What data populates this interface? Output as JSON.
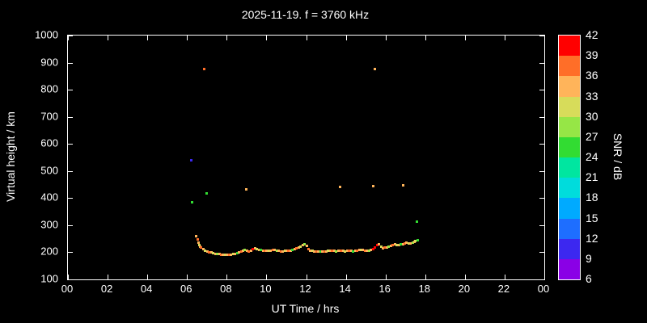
{
  "chart_data": {
    "type": "scatter",
    "title": "2025-11-19. f = 3760 kHz",
    "xlabel": "UT Time / hrs",
    "ylabel": "Virtual height / km",
    "xlim": [
      0,
      24
    ],
    "ylim": [
      100,
      1000
    ],
    "grid": false,
    "background_color": "#000000",
    "frame_color": "#ffffff",
    "x_tick_values": [
      0,
      2,
      4,
      6,
      8,
      10,
      12,
      14,
      16,
      18,
      20,
      22,
      24
    ],
    "x_tick_labels": [
      "00",
      "02",
      "04",
      "06",
      "08",
      "10",
      "12",
      "14",
      "16",
      "18",
      "20",
      "22",
      "00"
    ],
    "y_tick_values": [
      100,
      200,
      300,
      400,
      500,
      600,
      700,
      800,
      900,
      1000
    ],
    "colorbar": {
      "label": "SNR / dB",
      "min": 6,
      "max": 42,
      "tick_values": [
        6,
        9,
        12,
        15,
        18,
        21,
        24,
        27,
        30,
        33,
        36,
        39,
        42
      ],
      "segment_colors": [
        "#8a00e6",
        "#3c28f0",
        "#1e6eff",
        "#00aaff",
        "#00dcdc",
        "#00e6a0",
        "#32dc32",
        "#96e646",
        "#d7dc5a",
        "#ffb45a",
        "#ff6e28",
        "#ff0000"
      ]
    },
    "points_format": [
      "ut_hours",
      "virtual_height_km",
      "snr_db"
    ],
    "points": [
      [
        6.18,
        540,
        11
      ],
      [
        6.22,
        386,
        24
      ],
      [
        6.85,
        878,
        38
      ],
      [
        6.95,
        420,
        25
      ],
      [
        8.95,
        434,
        34
      ],
      [
        13.7,
        443,
        34
      ],
      [
        15.45,
        878,
        34
      ],
      [
        15.35,
        446,
        34
      ],
      [
        16.85,
        450,
        34
      ],
      [
        17.55,
        316,
        25
      ],
      [
        6.45,
        262,
        33
      ],
      [
        6.5,
        248,
        36
      ],
      [
        6.55,
        238,
        33
      ],
      [
        6.6,
        228,
        30
      ],
      [
        6.65,
        222,
        33
      ],
      [
        6.7,
        218,
        36
      ],
      [
        6.8,
        212,
        33
      ],
      [
        6.9,
        208,
        30
      ],
      [
        7.0,
        205,
        33
      ],
      [
        7.1,
        202,
        36
      ],
      [
        7.2,
        200,
        33
      ],
      [
        7.3,
        198,
        30
      ],
      [
        7.4,
        196,
        33
      ],
      [
        7.5,
        195,
        27
      ],
      [
        7.6,
        194,
        33
      ],
      [
        7.7,
        193,
        36
      ],
      [
        7.8,
        192,
        33
      ],
      [
        7.9,
        192,
        30
      ],
      [
        8.0,
        191,
        33
      ],
      [
        8.1,
        192,
        36
      ],
      [
        8.2,
        193,
        33
      ],
      [
        8.3,
        195,
        30
      ],
      [
        8.4,
        196,
        33
      ],
      [
        8.5,
        198,
        24
      ],
      [
        8.6,
        200,
        33
      ],
      [
        8.7,
        203,
        36
      ],
      [
        8.8,
        207,
        33
      ],
      [
        8.9,
        210,
        27
      ],
      [
        9.0,
        206,
        33
      ],
      [
        9.1,
        204,
        36
      ],
      [
        9.2,
        207,
        33
      ],
      [
        9.3,
        212,
        39
      ],
      [
        9.4,
        216,
        33
      ],
      [
        9.5,
        213,
        30
      ],
      [
        9.6,
        210,
        33
      ],
      [
        9.7,
        209,
        24
      ],
      [
        9.8,
        208,
        33
      ],
      [
        9.9,
        207,
        36
      ],
      [
        10.0,
        207,
        33
      ],
      [
        10.1,
        208,
        30
      ],
      [
        10.2,
        208,
        33
      ],
      [
        10.3,
        210,
        36
      ],
      [
        10.4,
        209,
        33
      ],
      [
        10.5,
        207,
        27
      ],
      [
        10.6,
        206,
        33
      ],
      [
        10.7,
        205,
        36
      ],
      [
        10.8,
        205,
        33
      ],
      [
        10.9,
        206,
        30
      ],
      [
        11.0,
        206,
        33
      ],
      [
        11.1,
        207,
        36
      ],
      [
        11.2,
        208,
        33
      ],
      [
        11.3,
        210,
        24
      ],
      [
        11.4,
        212,
        33
      ],
      [
        11.5,
        215,
        36
      ],
      [
        11.6,
        218,
        33
      ],
      [
        11.7,
        222,
        30
      ],
      [
        11.8,
        228,
        33
      ],
      [
        11.9,
        232,
        27
      ],
      [
        12.0,
        224,
        33
      ],
      [
        12.1,
        214,
        36
      ],
      [
        12.2,
        208,
        33
      ],
      [
        12.3,
        206,
        30
      ],
      [
        12.4,
        205,
        33
      ],
      [
        12.5,
        205,
        36
      ],
      [
        12.6,
        204,
        33
      ],
      [
        12.7,
        203,
        24
      ],
      [
        12.8,
        204,
        33
      ],
      [
        12.9,
        205,
        36
      ],
      [
        13.0,
        205,
        33
      ],
      [
        13.1,
        206,
        30
      ],
      [
        13.2,
        206,
        33
      ],
      [
        13.3,
        207,
        36
      ],
      [
        13.4,
        206,
        33
      ],
      [
        13.5,
        205,
        27
      ],
      [
        13.6,
        206,
        33
      ],
      [
        13.75,
        207,
        36
      ],
      [
        13.85,
        206,
        33
      ],
      [
        13.95,
        205,
        30
      ],
      [
        14.05,
        206,
        33
      ],
      [
        14.15,
        207,
        36
      ],
      [
        14.25,
        206,
        33
      ],
      [
        14.35,
        205,
        24
      ],
      [
        14.45,
        206,
        33
      ],
      [
        14.55,
        207,
        36
      ],
      [
        14.65,
        209,
        33
      ],
      [
        14.75,
        211,
        30
      ],
      [
        14.85,
        209,
        33
      ],
      [
        14.95,
        208,
        36
      ],
      [
        15.05,
        207,
        33
      ],
      [
        15.15,
        208,
        27
      ],
      [
        15.25,
        210,
        33
      ],
      [
        15.35,
        213,
        39
      ],
      [
        15.45,
        218,
        42
      ],
      [
        15.55,
        228,
        39
      ],
      [
        15.65,
        232,
        33
      ],
      [
        15.75,
        222,
        30
      ],
      [
        15.85,
        215,
        33
      ],
      [
        15.95,
        218,
        36
      ],
      [
        16.05,
        220,
        33
      ],
      [
        16.15,
        223,
        27
      ],
      [
        16.25,
        226,
        33
      ],
      [
        16.35,
        228,
        36
      ],
      [
        16.45,
        230,
        33
      ],
      [
        16.55,
        229,
        30
      ],
      [
        16.65,
        228,
        33
      ],
      [
        16.75,
        230,
        24
      ],
      [
        16.85,
        232,
        33
      ],
      [
        16.95,
        234,
        36
      ],
      [
        17.05,
        236,
        33
      ],
      [
        17.15,
        234,
        30
      ],
      [
        17.25,
        233,
        33
      ],
      [
        17.35,
        236,
        27
      ],
      [
        17.45,
        239,
        33
      ],
      [
        17.5,
        242,
        30
      ],
      [
        17.6,
        245,
        24
      ]
    ]
  }
}
